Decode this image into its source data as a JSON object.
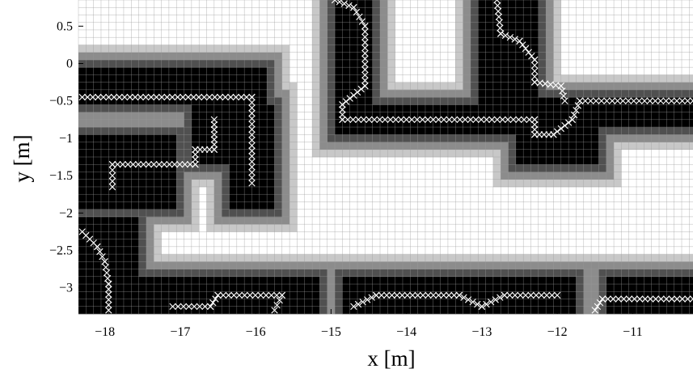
{
  "chart_data": {
    "type": "heatmap",
    "title": "",
    "xlabel": "x [m]",
    "ylabel": "y [m]",
    "xlim": [
      -18.35,
      -10.2
    ],
    "ylim": [
      -3.35,
      0.85
    ],
    "cell_size_m": 0.1,
    "x_ticks": [
      {
        "value": -18,
        "label": "−18"
      },
      {
        "value": -17,
        "label": "−17"
      },
      {
        "value": -16,
        "label": "−16"
      },
      {
        "value": -15,
        "label": "−15"
      },
      {
        "value": -14,
        "label": "−14"
      },
      {
        "value": -13,
        "label": "−13"
      },
      {
        "value": -12,
        "label": "−12"
      },
      {
        "value": -11,
        "label": "−11"
      }
    ],
    "y_ticks": [
      {
        "value": 0.5,
        "label": "0.5"
      },
      {
        "value": 0,
        "label": "0"
      },
      {
        "value": -0.5,
        "label": "−0.5"
      },
      {
        "value": -1,
        "label": "−1"
      },
      {
        "value": -1.5,
        "label": "−1.5"
      },
      {
        "value": -2,
        "label": "−2"
      },
      {
        "value": -2.5,
        "label": "−2.5"
      },
      {
        "value": -3,
        "label": "−3"
      }
    ],
    "grid": true,
    "levels": [
      {
        "level": 0,
        "color": "#ffffff",
        "meaning": "free"
      },
      {
        "level": 1,
        "color": "#c8c8c8",
        "meaning": "low"
      },
      {
        "level": 2,
        "color": "#8c8c8c",
        "meaning": "medium"
      },
      {
        "level": 3,
        "color": "#505050",
        "meaning": "high"
      },
      {
        "level": 4,
        "color": "#000000",
        "meaning": "occupied"
      }
    ],
    "occupied_regions": [
      [
        -18.4,
        -15.9,
        -0.6,
        -0.1
      ],
      [
        -18.4,
        -17.1,
        -1.9,
        -0.9
      ],
      [
        -16.4,
        -15.8,
        -1.9,
        -0.6
      ],
      [
        -16.9,
        -16.4,
        -1.3,
        -0.6
      ],
      [
        -18.3,
        -17.6,
        -3.4,
        -2.1
      ],
      [
        -17.5,
        -15.2,
        -3.4,
        -2.9
      ],
      [
        -14.9,
        -11.8,
        -3.4,
        -2.9
      ],
      [
        -11.4,
        -10.2,
        -3.4,
        -2.9
      ],
      [
        -15.0,
        -14.5,
        -0.9,
        0.9
      ],
      [
        -15.0,
        -12.3,
        -0.9,
        -0.6
      ],
      [
        -13.0,
        -12.3,
        -0.9,
        0.9
      ],
      [
        -12.6,
        -10.2,
        -0.8,
        -0.4
      ],
      [
        -12.6,
        -11.5,
        -1.3,
        -0.8
      ]
    ],
    "path_segments": [
      [
        [
          -18.3,
          -0.45
        ],
        [
          -16.05,
          -0.45
        ],
        [
          -16.05,
          -1.6
        ]
      ],
      [
        [
          -16.55,
          -0.75
        ],
        [
          -16.55,
          -1.15
        ],
        [
          -16.8,
          -1.15
        ],
        [
          -16.8,
          -1.35
        ],
        [
          -17.9,
          -1.35
        ],
        [
          -17.9,
          -1.65
        ]
      ],
      [
        [
          -18.3,
          -2.25
        ],
        [
          -18.1,
          -2.45
        ],
        [
          -18.0,
          -2.65
        ],
        [
          -17.95,
          -2.95
        ],
        [
          -17.95,
          -3.3
        ]
      ],
      [
        [
          -17.1,
          -3.25
        ],
        [
          -16.6,
          -3.25
        ],
        [
          -16.5,
          -3.1
        ],
        [
          -15.65,
          -3.1
        ],
        [
          -15.75,
          -3.3
        ]
      ],
      [
        [
          -14.7,
          -3.25
        ],
        [
          -14.4,
          -3.1
        ],
        [
          -13.3,
          -3.1
        ],
        [
          -13.0,
          -3.25
        ],
        [
          -12.7,
          -3.1
        ],
        [
          -12.0,
          -3.1
        ]
      ],
      [
        [
          -14.95,
          0.85
        ],
        [
          -14.7,
          0.75
        ],
        [
          -14.55,
          0.5
        ],
        [
          -14.55,
          -0.3
        ],
        [
          -14.85,
          -0.55
        ],
        [
          -14.85,
          -0.75
        ],
        [
          -12.3,
          -0.75
        ],
        [
          -12.3,
          -0.95
        ],
        [
          -12.05,
          -0.95
        ],
        [
          -11.8,
          -0.75
        ],
        [
          -11.7,
          -0.5
        ],
        [
          -10.2,
          -0.5
        ]
      ],
      [
        [
          -12.8,
          0.85
        ],
        [
          -12.75,
          0.4
        ],
        [
          -12.5,
          0.3
        ],
        [
          -12.3,
          0.05
        ],
        [
          -12.3,
          -0.25
        ],
        [
          -11.95,
          -0.3
        ],
        [
          -11.9,
          -0.5
        ]
      ],
      [
        [
          -11.5,
          -3.3
        ],
        [
          -11.4,
          -3.15
        ],
        [
          -10.2,
          -3.15
        ]
      ]
    ]
  }
}
